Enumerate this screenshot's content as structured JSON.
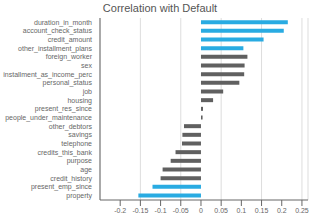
{
  "chart_data": {
    "type": "bar",
    "orientation": "horizontal",
    "title": "Correlation with Default",
    "categories": [
      "duration_in_month",
      "account_check_status",
      "credit_amount",
      "other_installment_plans",
      "foreign_worker",
      "sex",
      "installment_as_income_perc",
      "personal_status",
      "job",
      "housing",
      "present_res_since",
      "people_under_maintenance",
      "other_debtors",
      "savings",
      "telephone",
      "credits_this_bank",
      "purpose",
      "age",
      "credit_history",
      "present_emp_since",
      "property"
    ],
    "values": [
      0.215,
      0.205,
      0.155,
      0.105,
      0.115,
      0.108,
      0.107,
      0.095,
      0.055,
      0.03,
      0.005,
      0.004,
      -0.042,
      -0.046,
      -0.047,
      -0.063,
      -0.075,
      -0.095,
      -0.1,
      -0.12,
      -0.155
    ],
    "colors": [
      "#29ABE2",
      "#29ABE2",
      "#29ABE2",
      "#29ABE2",
      "#606060",
      "#606060",
      "#606060",
      "#606060",
      "#606060",
      "#606060",
      "#606060",
      "#606060",
      "#606060",
      "#606060",
      "#606060",
      "#606060",
      "#606060",
      "#606060",
      "#606060",
      "#29ABE2",
      "#29ABE2"
    ],
    "xlim": [
      -0.25,
      0.265
    ],
    "xticks": [
      -0.2,
      -0.15,
      -0.1,
      -0.05,
      0,
      0.05,
      0.1,
      0.15,
      0.2,
      0.25
    ],
    "grid": true
  }
}
